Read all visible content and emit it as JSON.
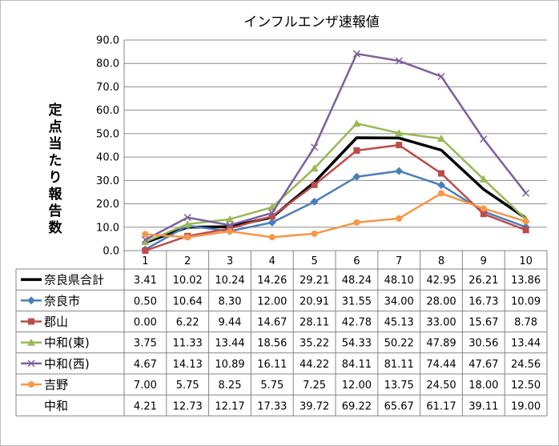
{
  "chart_data": {
    "type": "line",
    "title": "インフルエンザ速報値",
    "ylabel": "定点当たり報告数",
    "xlabel": "",
    "categories": [
      "1",
      "2",
      "3",
      "4",
      "5",
      "6",
      "7",
      "8",
      "9",
      "10"
    ],
    "ylim": [
      0,
      90
    ],
    "ytick_step": 10,
    "grid": true,
    "legend": "table-below",
    "series": [
      {
        "name": "奈良県合計",
        "color": "#000000",
        "marker": "none",
        "bold": true,
        "values": [
          3.41,
          10.02,
          10.24,
          14.26,
          29.21,
          48.24,
          48.1,
          42.95,
          26.21,
          13.86
        ]
      },
      {
        "name": "奈良市",
        "color": "#4a7ebb",
        "marker": "diamond",
        "values": [
          0.5,
          10.64,
          8.3,
          12.0,
          20.91,
          31.55,
          34.0,
          28.0,
          16.73,
          10.09
        ]
      },
      {
        "name": "郡山",
        "color": "#be4b48",
        "marker": "square",
        "values": [
          0.0,
          6.22,
          9.44,
          14.67,
          28.11,
          42.78,
          45.13,
          33.0,
          15.67,
          8.78
        ]
      },
      {
        "name": "中和(東)",
        "color": "#98b954",
        "marker": "triangle",
        "values": [
          3.75,
          11.33,
          13.44,
          18.56,
          35.22,
          54.33,
          50.22,
          47.89,
          30.56,
          13.44
        ]
      },
      {
        "name": "中和(西)",
        "color": "#7d5fa0",
        "marker": "x",
        "values": [
          4.67,
          14.13,
          10.89,
          16.11,
          44.22,
          84.11,
          81.11,
          74.44,
          47.67,
          24.56
        ]
      },
      {
        "name": "吉野",
        "color": "#f79646",
        "marker": "circle",
        "values": [
          7.0,
          5.75,
          8.25,
          5.75,
          7.25,
          12.0,
          13.75,
          24.5,
          18.0,
          12.5
        ]
      },
      {
        "name": "中和",
        "color": "",
        "marker": "none",
        "table_only": true,
        "values": [
          4.21,
          12.73,
          12.17,
          17.33,
          39.72,
          69.22,
          65.67,
          61.17,
          39.11,
          19.0
        ]
      }
    ]
  }
}
